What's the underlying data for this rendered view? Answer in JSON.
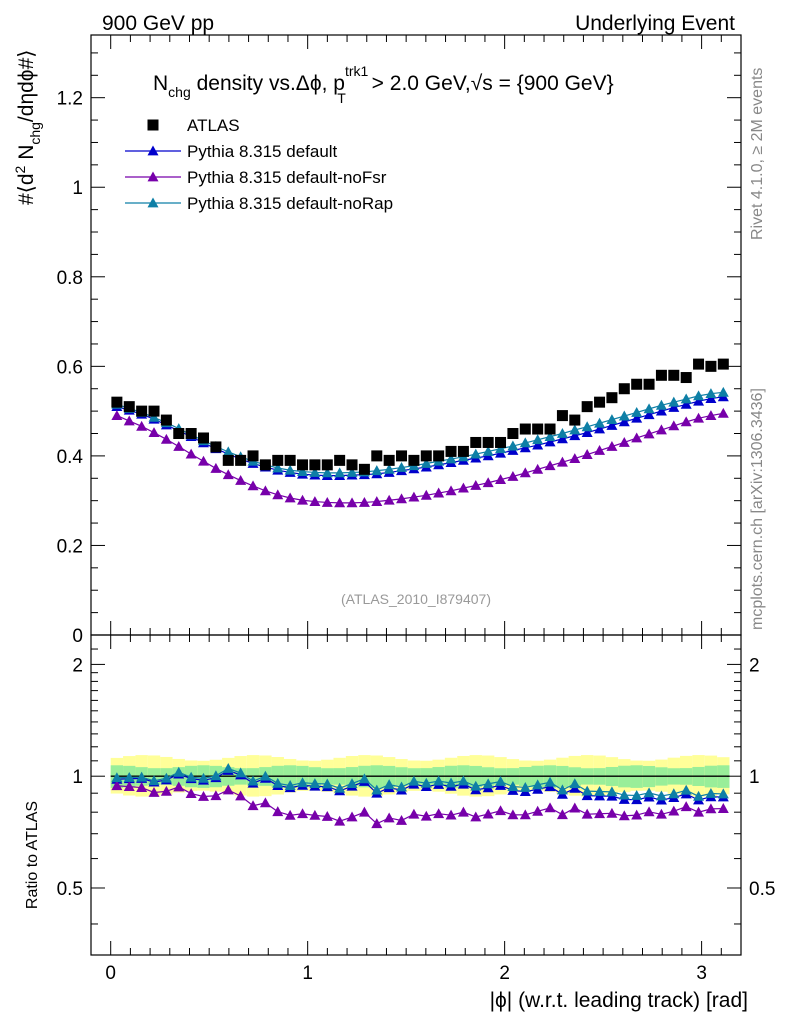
{
  "header": {
    "left": "900 GeV pp",
    "right": "Underlying Event"
  },
  "side_labels": {
    "rivet": "Rivet 4.1.0, ≥ 2M events",
    "mcplots": "mcplots.cern.ch [arXiv:1306.3436]"
  },
  "main_plot": {
    "title": {
      "p1": "N",
      "p1_sub": "chg",
      "p2": " density vs.Δϕ, p",
      "p2_sup": "trk1",
      "p2_sub": "T",
      "p3": " > 2.0 GeV,",
      "sqrt": "√",
      "s": "s",
      "p4": " = {900 GeV}"
    },
    "ylabel": {
      "a": "#⟨d",
      "b": "2",
      "c": " N",
      "d": "chg",
      "e": "/dηdϕ#⟩"
    },
    "watermark": "(ATLAS_2010_I879407)",
    "yticks": [
      "0",
      "0.2",
      "0.4",
      "0.6",
      "0.8",
      "1",
      "1.2"
    ]
  },
  "ratio_plot": {
    "ylabel": "Ratio to ATLAS",
    "yticks_left": [
      "0.5",
      "1",
      "2"
    ],
    "yticks_right": [
      "0.5",
      "1",
      "2"
    ]
  },
  "xaxis": {
    "label": "|ϕ| (w.r.t. leading track) [rad]",
    "ticks": [
      "0",
      "1",
      "2",
      "3"
    ]
  },
  "legend": [
    {
      "label": "ATLAS",
      "color": "#000000",
      "marker": "square"
    },
    {
      "label": "Pythia 8.315 default",
      "color": "#0000cc",
      "marker": "triangle"
    },
    {
      "label": "Pythia 8.315 default-noFsr",
      "color": "#7700aa",
      "marker": "triangle"
    },
    {
      "label": "Pythia 8.315 default-noRap",
      "color": "#0e7fa6",
      "marker": "triangle"
    }
  ],
  "chart_data": {
    "type": "scatter",
    "title": "Nchg density vs. Δϕ, pT trk1 > 2.0 GeV, √s = {900 GeV}",
    "xlabel": "|ϕ| (w.r.t. leading track) [rad]",
    "ylabel": "#⟨d2 Nchg/dηdϕ#⟩",
    "xlim": [
      -0.1,
      3.2
    ],
    "ylim": [
      0,
      1.34
    ],
    "ratio_ylim": [
      0.33,
      2.4
    ],
    "x": [
      0.0314,
      0.0942,
      0.1571,
      0.2199,
      0.2827,
      0.3456,
      0.4084,
      0.4712,
      0.5341,
      0.5969,
      0.6597,
      0.7226,
      0.7854,
      0.8482,
      0.911,
      0.9739,
      1.0367,
      1.0996,
      1.1624,
      1.2252,
      1.2881,
      1.3509,
      1.4137,
      1.4765,
      1.5394,
      1.6022,
      1.665,
      1.7279,
      1.7907,
      1.8535,
      1.9164,
      1.9792,
      2.042,
      2.1049,
      2.1677,
      2.2305,
      2.2934,
      2.3562,
      2.419,
      2.4819,
      2.5447,
      2.6075,
      2.6704,
      2.7332,
      2.796,
      2.8588,
      2.9217,
      2.9845,
      3.0473,
      3.1102
    ],
    "series": [
      {
        "name": "ATLAS",
        "marker": "square",
        "color": "#000000",
        "values": [
          0.52,
          0.51,
          0.5,
          0.5,
          0.48,
          0.45,
          0.45,
          0.44,
          0.42,
          0.39,
          0.39,
          0.4,
          0.38,
          0.39,
          0.39,
          0.38,
          0.38,
          0.38,
          0.39,
          0.38,
          0.37,
          0.4,
          0.39,
          0.4,
          0.39,
          0.4,
          0.4,
          0.41,
          0.41,
          0.43,
          0.43,
          0.43,
          0.45,
          0.46,
          0.46,
          0.46,
          0.49,
          0.48,
          0.51,
          0.52,
          0.53,
          0.55,
          0.56,
          0.56,
          0.58,
          0.58,
          0.575,
          0.605,
          0.6,
          0.605
        ]
      },
      {
        "name": "Pythia 8.315 default",
        "marker": "triangle",
        "color": "#0000cc",
        "values": [
          0.51,
          0.502,
          0.493,
          0.482,
          0.469,
          0.456,
          0.443,
          0.429,
          0.416,
          0.404,
          0.393,
          0.383,
          0.375,
          0.368,
          0.363,
          0.359,
          0.357,
          0.356,
          0.356,
          0.357,
          0.358,
          0.36,
          0.363,
          0.367,
          0.371,
          0.375,
          0.38,
          0.385,
          0.39,
          0.395,
          0.4,
          0.406,
          0.412,
          0.418,
          0.424,
          0.431,
          0.438,
          0.445,
          0.452,
          0.46,
          0.468,
          0.476,
          0.484,
          0.492,
          0.5,
          0.508,
          0.515,
          0.522,
          0.528,
          0.532
        ]
      },
      {
        "name": "Pythia 8.315 default-noFsr",
        "marker": "triangle",
        "color": "#7700aa",
        "values": [
          0.49,
          0.478,
          0.466,
          0.452,
          0.437,
          0.421,
          0.404,
          0.388,
          0.372,
          0.358,
          0.345,
          0.333,
          0.322,
          0.313,
          0.306,
          0.301,
          0.298,
          0.296,
          0.295,
          0.295,
          0.296,
          0.298,
          0.301,
          0.304,
          0.308,
          0.312,
          0.317,
          0.322,
          0.328,
          0.334,
          0.34,
          0.347,
          0.354,
          0.362,
          0.37,
          0.378,
          0.386,
          0.394,
          0.403,
          0.412,
          0.421,
          0.43,
          0.44,
          0.449,
          0.458,
          0.467,
          0.476,
          0.484,
          0.49,
          0.495
        ]
      },
      {
        "name": "Pythia 8.315 default-noRap",
        "marker": "triangle",
        "color": "#0e7fa6",
        "values": [
          0.515,
          0.506,
          0.497,
          0.486,
          0.474,
          0.461,
          0.447,
          0.434,
          0.421,
          0.409,
          0.398,
          0.388,
          0.38,
          0.373,
          0.368,
          0.365,
          0.363,
          0.362,
          0.362,
          0.363,
          0.364,
          0.367,
          0.37,
          0.374,
          0.378,
          0.383,
          0.388,
          0.393,
          0.398,
          0.404,
          0.41,
          0.416,
          0.422,
          0.429,
          0.436,
          0.443,
          0.45,
          0.458,
          0.465,
          0.473,
          0.481,
          0.489,
          0.497,
          0.505,
          0.513,
          0.52,
          0.527,
          0.534,
          0.539,
          0.542
        ]
      }
    ]
  }
}
